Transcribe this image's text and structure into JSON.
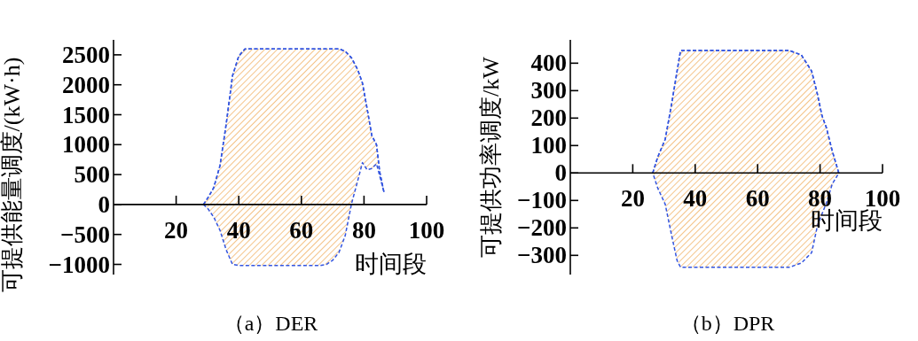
{
  "chart_data": [
    {
      "type": "line",
      "title": "（a）DER",
      "xlabel": "时间段",
      "ylabel": "可提供能量调度/(kW·h)",
      "xlim": [
        0,
        100
      ],
      "ylim": [
        -1170,
        2750
      ],
      "xticks": [
        20,
        40,
        60,
        80,
        100
      ],
      "yticks": [
        -1000,
        -500,
        0,
        500,
        1000,
        1500,
        2000,
        2500
      ],
      "line_style": "dashed",
      "series": [
        {
          "color": "#3355e0",
          "x": [
            28.7,
            30,
            32,
            34,
            36,
            38,
            40,
            42,
            66,
            68,
            70,
            72,
            74,
            76,
            78,
            79.5,
            81,
            82.5,
            84,
            85,
            86.4
          ],
          "values": [
            0,
            100,
            280,
            650,
            1350,
            2150,
            2480,
            2600,
            2600,
            2600,
            2600,
            2600,
            2560,
            2450,
            2250,
            2030,
            1600,
            1150,
            1000,
            550,
            200
          ],
          "upper": [
            0,
            100,
            280,
            650,
            1350,
            2150,
            2480,
            2600,
            2600,
            2600,
            2600,
            2600,
            2560,
            2450,
            2250,
            2030,
            1600,
            1150,
            1000,
            550,
            200
          ],
          "lower": [
            0,
            -60,
            -210,
            -430,
            -760,
            -1000,
            -1020,
            -1020,
            -1020,
            -1000,
            -930,
            -800,
            -520,
            10,
            400,
            700,
            580,
            600,
            680,
            480,
            200
          ]
        }
      ]
    },
    {
      "type": "line",
      "title": "（b）DPR",
      "xlabel": "时间段",
      "ylabel": "可提供功率调度/kW",
      "xlim": [
        0,
        100
      ],
      "ylim": [
        -370,
        485
      ],
      "xticks": [
        20,
        40,
        60,
        80,
        100
      ],
      "yticks": [
        -300,
        -200,
        -100,
        0,
        100,
        200,
        300,
        400
      ],
      "line_style": "dashed",
      "series": [
        {
          "color": "#3355e0",
          "x": [
            26.4,
            28,
            30.4,
            32.5,
            34.2,
            35.3,
            70.2,
            74,
            77.3,
            79.2,
            80.6,
            82,
            83.9,
            86
          ],
          "values": [
            0,
            58,
            123,
            255,
            371,
            446,
            446,
            430,
            371,
            285,
            209,
            166,
            80,
            0
          ],
          "upper": [
            0,
            58,
            123,
            255,
            371,
            446,
            446,
            430,
            371,
            285,
            209,
            166,
            80,
            0
          ],
          "lower": [
            0,
            -55,
            -114,
            -230,
            -319,
            -343,
            -343,
            -328,
            -290,
            -190,
            -150,
            -110,
            -40,
            0
          ]
        }
      ]
    }
  ]
}
